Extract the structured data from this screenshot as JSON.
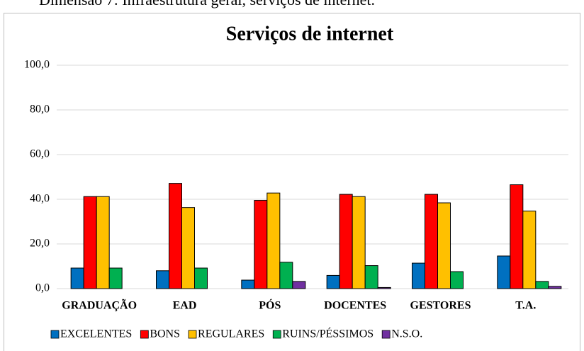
{
  "chart_data": {
    "type": "bar",
    "caption": "Dimensão 7: Infraestrutura geral, serviços de internet.",
    "title": "Serviços de internet",
    "categories": [
      "GRADUAÇÃO",
      "EAD",
      "PÓS",
      "DOCENTES",
      "GESTORES",
      "T.A."
    ],
    "series": [
      {
        "name": "EXCELENTES",
        "color": "#0070c0",
        "values": [
          9.2,
          8.0,
          3.8,
          5.9,
          11.4,
          14.6
        ]
      },
      {
        "name": "BONS",
        "color": "#ff0000",
        "values": [
          41.2,
          47.1,
          39.5,
          42.2,
          42.2,
          46.5
        ]
      },
      {
        "name": "REGULARES",
        "color": "#ffc000",
        "values": [
          41.2,
          36.3,
          42.8,
          41.2,
          38.4,
          34.7
        ]
      },
      {
        "name": "RUINS/PÉSSIMOS",
        "color": "#00b050",
        "values": [
          9.2,
          9.2,
          11.8,
          10.3,
          7.6,
          3.2
        ]
      },
      {
        "name": "N.S.O.",
        "color": "#7030a0",
        "values": [
          0,
          0,
          3.2,
          0.5,
          0,
          1.0
        ]
      }
    ],
    "ylim": [
      0,
      100
    ],
    "yticks": [
      {
        "value": 0,
        "label": "0,0"
      },
      {
        "value": 20,
        "label": "20,0"
      },
      {
        "value": 40,
        "label": "40,0"
      },
      {
        "value": 60,
        "label": "60,0"
      },
      {
        "value": 80,
        "label": "80,0"
      },
      {
        "value": 100,
        "label": "100,0"
      }
    ],
    "grid": true,
    "legend": "bottom"
  }
}
